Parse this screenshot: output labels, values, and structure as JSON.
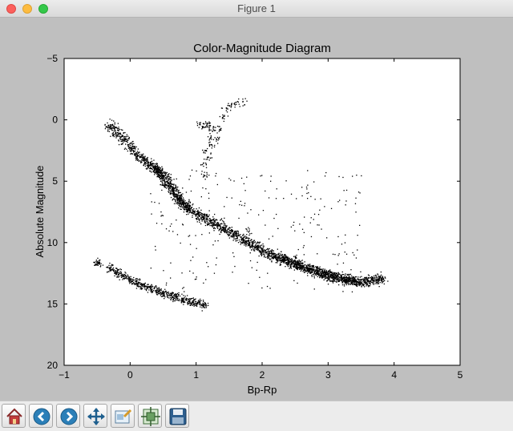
{
  "window": {
    "title": "Figure 1"
  },
  "toolbar": {
    "buttons": [
      {
        "name": "home-icon"
      },
      {
        "name": "back-icon"
      },
      {
        "name": "forward-icon"
      },
      {
        "name": "pan-icon"
      },
      {
        "name": "zoom-icon"
      },
      {
        "name": "configure-subplots-icon"
      },
      {
        "name": "save-icon"
      }
    ]
  },
  "chart_data": {
    "type": "scatter",
    "title": "Color-Magnitude Diagram",
    "xlabel": "Bp-Rp",
    "ylabel": "Absolute Magnitude",
    "xlim": [
      -1,
      5
    ],
    "ylim": [
      20,
      -5
    ],
    "y_inverted": true,
    "xticks": [
      "−1",
      "0",
      "1",
      "2",
      "3",
      "4",
      "5"
    ],
    "yticks": [
      "−5",
      "0",
      "5",
      "10",
      "15",
      "20"
    ],
    "xtick_values": [
      -1,
      0,
      1,
      2,
      3,
      4,
      5
    ],
    "ytick_values": [
      -5,
      0,
      5,
      10,
      15,
      20
    ],
    "grid": false,
    "marker_color": "#000000",
    "series": [
      {
        "values_description_note": "",
        "x": [
          -0.3,
          -0.2,
          -0.1,
          0.0,
          0.1,
          0.2,
          0.3,
          0.35,
          0.4,
          0.45,
          0.5,
          0.55,
          0.6,
          0.65,
          0.7,
          0.75,
          0.8,
          0.85,
          0.9,
          1.0,
          1.1,
          1.2,
          1.3,
          1.4,
          1.5,
          1.6,
          1.7,
          1.8,
          1.9,
          2.0,
          2.1,
          2.2,
          2.3,
          2.4,
          2.5,
          2.6,
          2.7,
          2.8,
          2.9,
          3.0,
          3.1,
          3.2,
          3.3,
          3.4,
          3.5,
          3.6,
          3.7,
          3.8,
          -0.5,
          -0.3,
          -0.2,
          -0.1,
          0.0,
          0.1,
          0.2,
          0.3,
          0.4,
          0.5,
          0.6,
          0.7,
          0.8,
          0.9,
          1.0,
          1.1,
          1.05,
          1.1,
          1.15,
          1.2,
          1.25,
          1.2,
          1.15,
          1.1,
          1.12,
          1.18,
          1.22,
          1.3,
          1.35,
          1.4,
          1.5,
          1.6,
          1.7,
          1.45,
          1.8
        ],
        "y": [
          0.5,
          1.0,
          1.5,
          2.2,
          2.8,
          3.2,
          3.6,
          3.9,
          4.1,
          4.3,
          4.6,
          5.0,
          5.4,
          5.8,
          6.2,
          6.5,
          6.8,
          7.0,
          7.3,
          7.6,
          7.9,
          8.2,
          8.5,
          8.8,
          9.1,
          9.4,
          9.7,
          10.0,
          10.3,
          10.6,
          10.9,
          11.1,
          11.3,
          11.5,
          11.7,
          11.9,
          12.1,
          12.3,
          12.5,
          12.6,
          12.8,
          12.9,
          13.0,
          13.1,
          13.2,
          13.1,
          13.0,
          12.9,
          11.6,
          12.1,
          12.4,
          12.7,
          13.0,
          13.3,
          13.5,
          13.7,
          13.9,
          14.1,
          14.3,
          14.4,
          14.6,
          14.8,
          14.9,
          15.0,
          0.3,
          0.5,
          0.4,
          0.5,
          0.7,
          1.5,
          2.5,
          3.5,
          4.5,
          3.0,
          2.0,
          1.5,
          0.8,
          -0.2,
          -1.2,
          -1.3,
          -1.5,
          -1.0,
          9.0
        ]
      }
    ]
  }
}
